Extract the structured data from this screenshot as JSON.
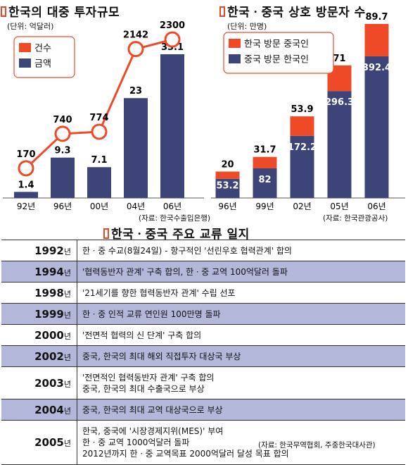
{
  "charts": {
    "left": {
      "title": "한국의 대중 투자규모",
      "unit": "(단위: 억달러)",
      "source": "(자료: 한국수출입은행)"
    },
    "right": {
      "title": "한국ㆍ중국 상호 방문자 수",
      "unit": "(단위: 만명)",
      "source": "(자료: 한국관광공사)"
    }
  },
  "chart_data": [
    {
      "type": "bar",
      "title": "한국의 대중 투자규모",
      "unit": "억달러",
      "categories": [
        "92년",
        "96년",
        "00년",
        "04년",
        "06년"
      ],
      "series": [
        {
          "name": "금액",
          "type": "bar",
          "color": "#3d4478",
          "values": [
            1.4,
            9.3,
            7.1,
            23,
            33.1
          ],
          "labels": [
            "1.4",
            "9.3",
            "7.1",
            "23",
            "33.1"
          ]
        },
        {
          "name": "건수",
          "type": "line",
          "color": "#ef4a28",
          "values": [
            170,
            740,
            774,
            2142,
            2300
          ],
          "labels": [
            "170",
            "740",
            "774",
            "2142",
            "2300"
          ]
        }
      ],
      "legend": "top-left"
    },
    {
      "type": "bar",
      "stacked": true,
      "title": "한국ㆍ중국 상호 방문자 수",
      "unit": "만명",
      "categories": [
        "96년",
        "99년",
        "02년",
        "05년",
        "06년"
      ],
      "series": [
        {
          "name": "중국 방문 한국인",
          "color": "#3d4478",
          "values": [
            53.2,
            82,
            172.2,
            296.3,
            392.4
          ],
          "labels": [
            "53.2",
            "82",
            "172.2",
            "296.3",
            "392.4"
          ]
        },
        {
          "name": "한국 방문 중국인",
          "color": "#ef4a28",
          "values": [
            20,
            31.7,
            53.9,
            71,
            89.7
          ],
          "labels": [
            "20",
            "31.7",
            "53.9",
            "71",
            "89.7"
          ]
        }
      ],
      "legend": "top-left"
    }
  ],
  "timeline": {
    "title": "한국ㆍ중국 주요 교류 일지",
    "year_suffix": "년",
    "rows": [
      {
        "year": "1992",
        "lines": [
          "한ㆍ중 수교(8월24일) - 항구적인 '선린우호 협력관계' 합의"
        ]
      },
      {
        "year": "1994",
        "lines": [
          "'협력동반자 관계' 구축 합의, 한ㆍ중 교역 100억달러 돌파"
        ]
      },
      {
        "year": "1998",
        "lines": [
          "'21세기를 향한 협력동반자 관계' 수립 선포"
        ]
      },
      {
        "year": "1999",
        "lines": [
          "한ㆍ중 인적 교류 연인원 100만명 돌파"
        ]
      },
      {
        "year": "2000",
        "lines": [
          "'전면적 협력의 신 단계' 구축 합의"
        ]
      },
      {
        "year": "2002",
        "lines": [
          "중국, 한국의 최대 해외 직접투자 대상국 부상"
        ]
      },
      {
        "year": "2003",
        "lines": [
          "'전면적인 협력동반자 관계' 구축 합의",
          "중국, 한국의 최대 수출국으로 부상"
        ]
      },
      {
        "year": "2004",
        "lines": [
          "중국, 한국의 최대 교역 대상국으로 부상"
        ]
      },
      {
        "year": "2005",
        "lines": [
          "한국, 중국에 '시장경제지위(MES)' 부여",
          "한ㆍ중 교역 1000억달러 돌파",
          "2012년까지 한ㆍ중 교역목표 2000억달러 달성 목표 합의"
        ]
      }
    ],
    "source": "(자료: 한국무역협회, 주중한국대사관)"
  }
}
